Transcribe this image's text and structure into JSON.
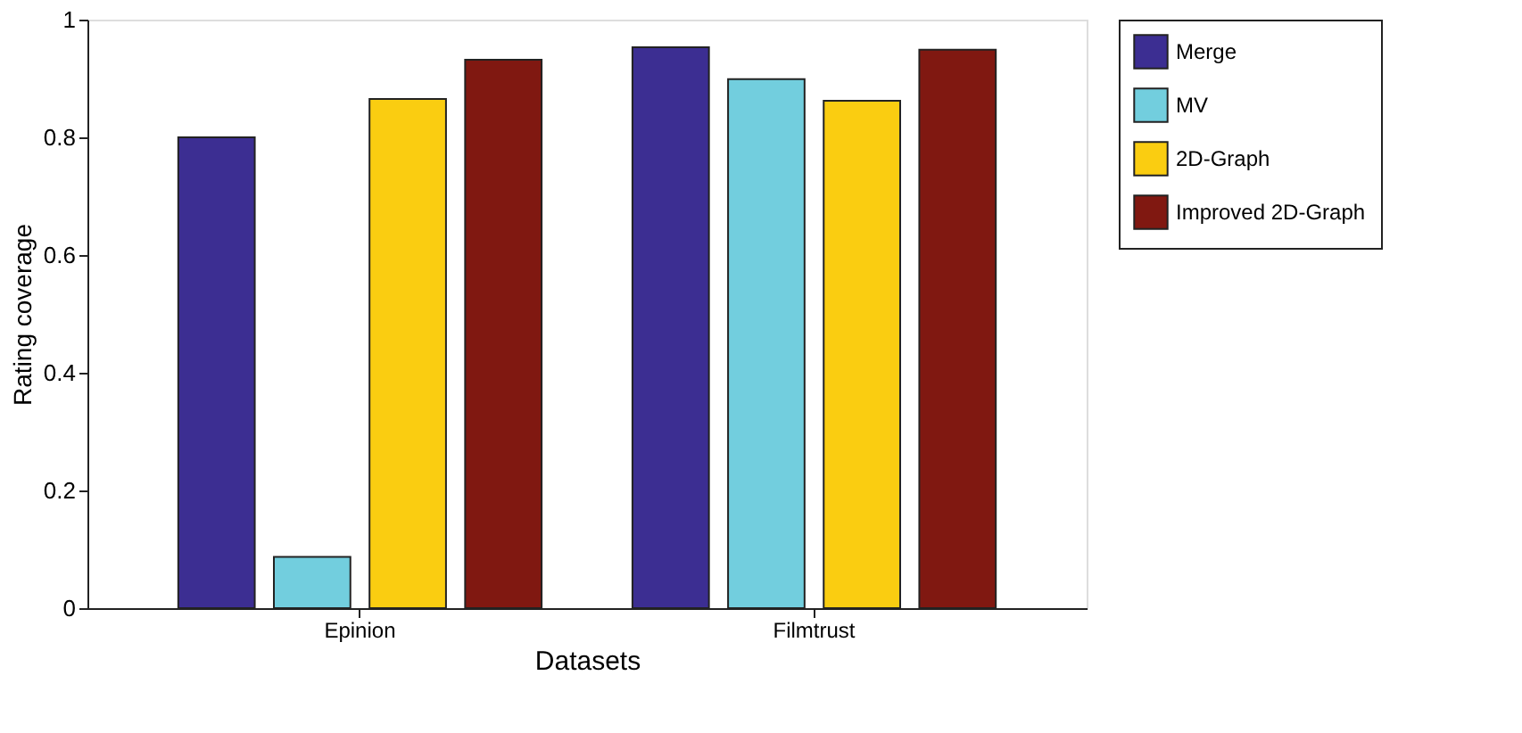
{
  "chart_data": {
    "type": "bar",
    "xlabel": "Datasets",
    "ylabel": "Rating coverage",
    "categories": [
      "Epinion",
      "Filmtrust"
    ],
    "series": [
      {
        "name": "Merge",
        "color": "#3c2e92",
        "values": [
          0.8,
          0.953
        ]
      },
      {
        "name": "MV",
        "color": "#72cede",
        "values": [
          0.087,
          0.899
        ]
      },
      {
        "name": "2D-Graph",
        "color": "#facd11",
        "values": [
          0.865,
          0.862
        ]
      },
      {
        "name": "Improved 2D-Graph",
        "color": "#801811",
        "values": [
          0.932,
          0.949
        ]
      }
    ],
    "ylim": [
      0,
      1
    ],
    "yticks": [
      0,
      0.2,
      0.4,
      0.6,
      0.8,
      1
    ],
    "grid": false,
    "legend": "top right"
  }
}
